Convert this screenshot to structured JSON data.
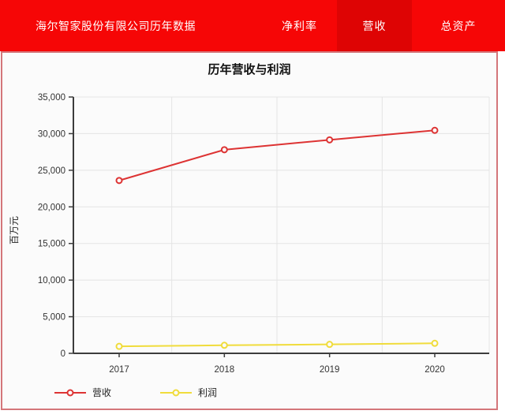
{
  "header": {
    "title": "海尔智家股份有限公司历年数据",
    "nav": [
      {
        "label": "净利率",
        "active": false
      },
      {
        "label": "营收",
        "active": true
      },
      {
        "label": "总资产",
        "active": false
      }
    ]
  },
  "colors": {
    "header_bg": "#f60606",
    "header_active_bg": "#de0404",
    "panel_border": "#d4767a",
    "axis": "#3c3c3c",
    "grid": "#e4e4e4",
    "revenue_red": "#dd3333",
    "profit_yellow": "#f0dc3c"
  },
  "chart_data": {
    "type": "line",
    "title": "历年营收与利润",
    "xlabel": "",
    "ylabel": "百万元",
    "categories": [
      "2017",
      "2018",
      "2019",
      "2020"
    ],
    "series": [
      {
        "name": "营收",
        "color": "#dd3333",
        "values": [
          23600,
          27800,
          29150,
          30450
        ]
      },
      {
        "name": "利润",
        "color": "#f0dc3c",
        "values": [
          950,
          1100,
          1220,
          1370
        ]
      }
    ],
    "ylim": [
      0,
      35000
    ],
    "ytick_step": 5000,
    "grid": true,
    "legend_position": "bottom-left"
  }
}
